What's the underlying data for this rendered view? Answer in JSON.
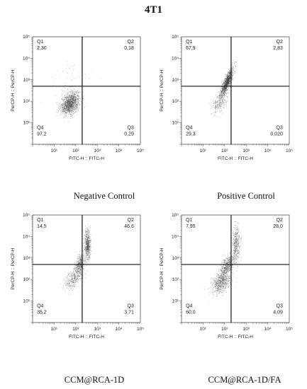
{
  "figure": {
    "title": "4T1"
  },
  "chart_data": [
    {
      "type": "scatter",
      "caption": "Negative Control",
      "xlabel": "FITC-H :: FITC-H",
      "ylabel": "PerCP-H :: PerCP-H",
      "xscale": "log",
      "yscale": "log",
      "xlim": [
        1,
        100000
      ],
      "ylim": [
        1,
        100000
      ],
      "gate": {
        "x": 200,
        "y": 500
      },
      "quadrants": [
        {
          "name": "Q1",
          "value": "2,30"
        },
        {
          "name": "Q2",
          "value": "0,18"
        },
        {
          "name": "Q3",
          "value": "0,29"
        },
        {
          "name": "Q4",
          "value": "97,2"
        }
      ],
      "x_ticks": [
        "10¹",
        "10²",
        "10³",
        "10⁴",
        "10⁵"
      ],
      "y_ticks": [
        "10¹",
        "10²",
        "10³",
        "10⁴",
        "10⁵"
      ]
    },
    {
      "type": "scatter",
      "caption": "Positive Control",
      "xlabel": "FITC-H :: FITC-H",
      "ylabel": "PerCP-H :: PerCP-H",
      "xscale": "log",
      "yscale": "log",
      "xlim": [
        1,
        100000
      ],
      "ylim": [
        1,
        100000
      ],
      "gate": {
        "x": 200,
        "y": 500
      },
      "quadrants": [
        {
          "name": "Q1",
          "value": "67,9"
        },
        {
          "name": "Q2",
          "value": "2,83"
        },
        {
          "name": "Q3",
          "value": "0,020"
        },
        {
          "name": "Q4",
          "value": "29,3"
        }
      ],
      "x_ticks": [
        "10¹",
        "10²",
        "10³",
        "10⁴",
        "10⁵"
      ],
      "y_ticks": [
        "10¹",
        "10²",
        "10³",
        "10⁴",
        "10⁵"
      ]
    },
    {
      "type": "scatter",
      "caption": "CCM@RCA-1D",
      "xlabel": "FITC-H :: FITC-H",
      "ylabel": "PerCP-H :: PerCP-H",
      "xscale": "log",
      "yscale": "log",
      "xlim": [
        1,
        100000
      ],
      "ylim": [
        1,
        100000
      ],
      "gate": {
        "x": 200,
        "y": 500
      },
      "quadrants": [
        {
          "name": "Q1",
          "value": "14,5"
        },
        {
          "name": "Q2",
          "value": "46,6"
        },
        {
          "name": "Q3",
          "value": "3,71"
        },
        {
          "name": "Q4",
          "value": "35,2"
        }
      ],
      "x_ticks": [
        "10¹",
        "10²",
        "10³",
        "10⁴",
        "10⁵"
      ],
      "y_ticks": [
        "10¹",
        "10²",
        "10³",
        "10⁴",
        "10⁵"
      ]
    },
    {
      "type": "scatter",
      "caption": "CCM@RCA-1D/FA",
      "xlabel": "FITC-H :: FITC-H",
      "ylabel": "PerCP-H :: PerCP-H",
      "xscale": "log",
      "yscale": "log",
      "xlim": [
        1,
        100000
      ],
      "ylim": [
        1,
        100000
      ],
      "gate": {
        "x": 200,
        "y": 500
      },
      "quadrants": [
        {
          "name": "Q1",
          "value": "7,95"
        },
        {
          "name": "Q2",
          "value": "28,0"
        },
        {
          "name": "Q3",
          "value": "4,09"
        },
        {
          "name": "Q4",
          "value": "60,0"
        }
      ],
      "x_ticks": [
        "10¹",
        "10²",
        "10³",
        "10⁴",
        "10⁵"
      ],
      "y_ticks": [
        "10¹",
        "10²",
        "10³",
        "10⁴",
        "10⁵"
      ]
    }
  ]
}
